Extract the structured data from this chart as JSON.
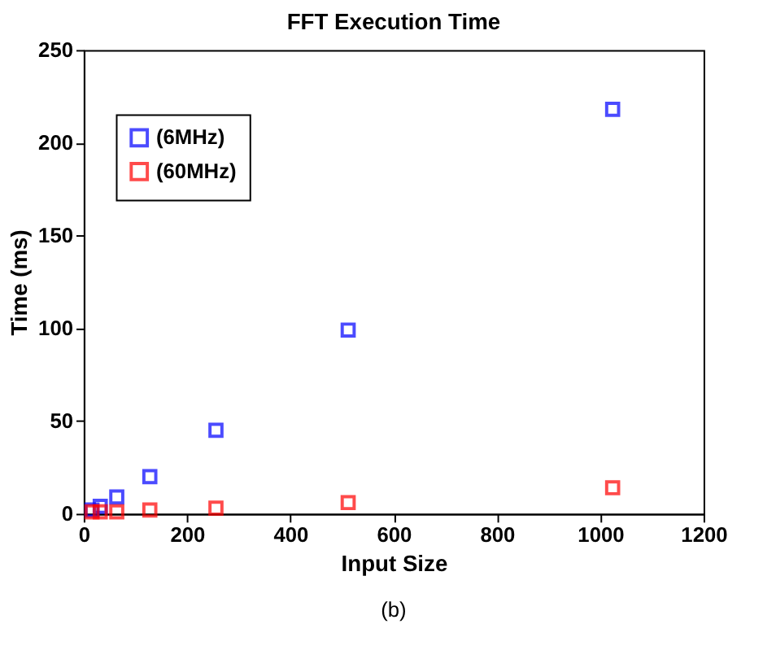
{
  "chart_data": {
    "type": "scatter",
    "title": "FFT Execution Time",
    "xlabel": "Input Size",
    "ylabel": "Time (ms)",
    "x": [
      16,
      32,
      64,
      128,
      256,
      512,
      1024
    ],
    "series": [
      {
        "name": "(6MHz)",
        "color": "#0000ff",
        "values": [
          2,
          4,
          9,
          20,
          45,
          99,
          218
        ]
      },
      {
        "name": "(60MHz)",
        "color": "#ff0000",
        "values": [
          1,
          1,
          1,
          2,
          3,
          6,
          14
        ]
      }
    ],
    "xlim": [
      0,
      1200
    ],
    "xticks": [
      0,
      200,
      400,
      600,
      800,
      1000,
      1200
    ],
    "ylim": [
      0,
      250
    ],
    "yticks": [
      0,
      50,
      100,
      150,
      200,
      250
    ],
    "marker": "square",
    "grid": false,
    "legend": "top left",
    "annotations": [
      "(b)"
    ]
  }
}
